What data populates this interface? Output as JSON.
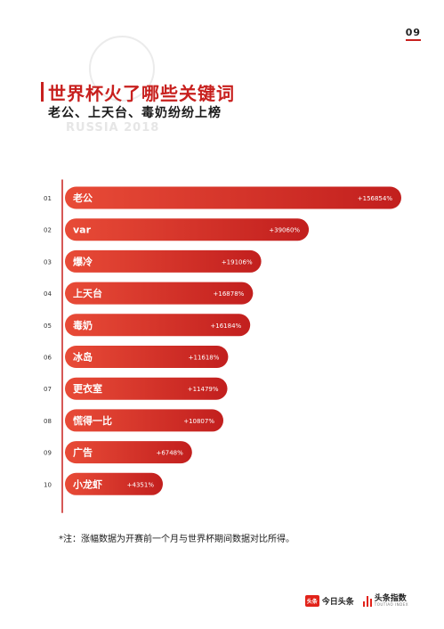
{
  "page_number": "09",
  "watermark_text": "RUSSIA 2018",
  "title": "世界杯火了哪些关键词",
  "subtitle": "老公、上天台、毒奶纷纷上榜",
  "colors": {
    "accent": "#c8201e",
    "bar_start": "#e84b37",
    "bar_end": "#c21f1e",
    "axis": "#c8201e"
  },
  "chart_data": {
    "type": "bar",
    "orientation": "horizontal",
    "title": "世界杯火了哪些关键词",
    "subtitle": "老公、上天台、毒奶纷纷上榜",
    "ranks": [
      "01",
      "02",
      "03",
      "04",
      "05",
      "06",
      "07",
      "08",
      "09",
      "10"
    ],
    "categories": [
      "老公",
      "var",
      "爆冷",
      "上天台",
      "毒奶",
      "冰岛",
      "更衣室",
      "慌得一比",
      "广告",
      "小龙虾"
    ],
    "values": [
      156854,
      39060,
      19106,
      16878,
      16184,
      11618,
      11479,
      10807,
      6748,
      4351
    ],
    "value_labels": [
      "+156854%",
      "+39060%",
      "+19106%",
      "+16878%",
      "+16184%",
      "+11618%",
      "+11479%",
      "+10807%",
      "+6748%",
      "+4351%"
    ],
    "unit": "%",
    "scale": "nonlinear",
    "grid": false,
    "legend": "none"
  },
  "note": "*注：涨幅数据为开赛前一个月与世界杯期间数据对比所得。",
  "footer": {
    "logo_a_box": "头条",
    "logo_a_text": "今日头条",
    "logo_b_text": "头条指数",
    "logo_b_sub": "TOUTIAO INDEX"
  }
}
